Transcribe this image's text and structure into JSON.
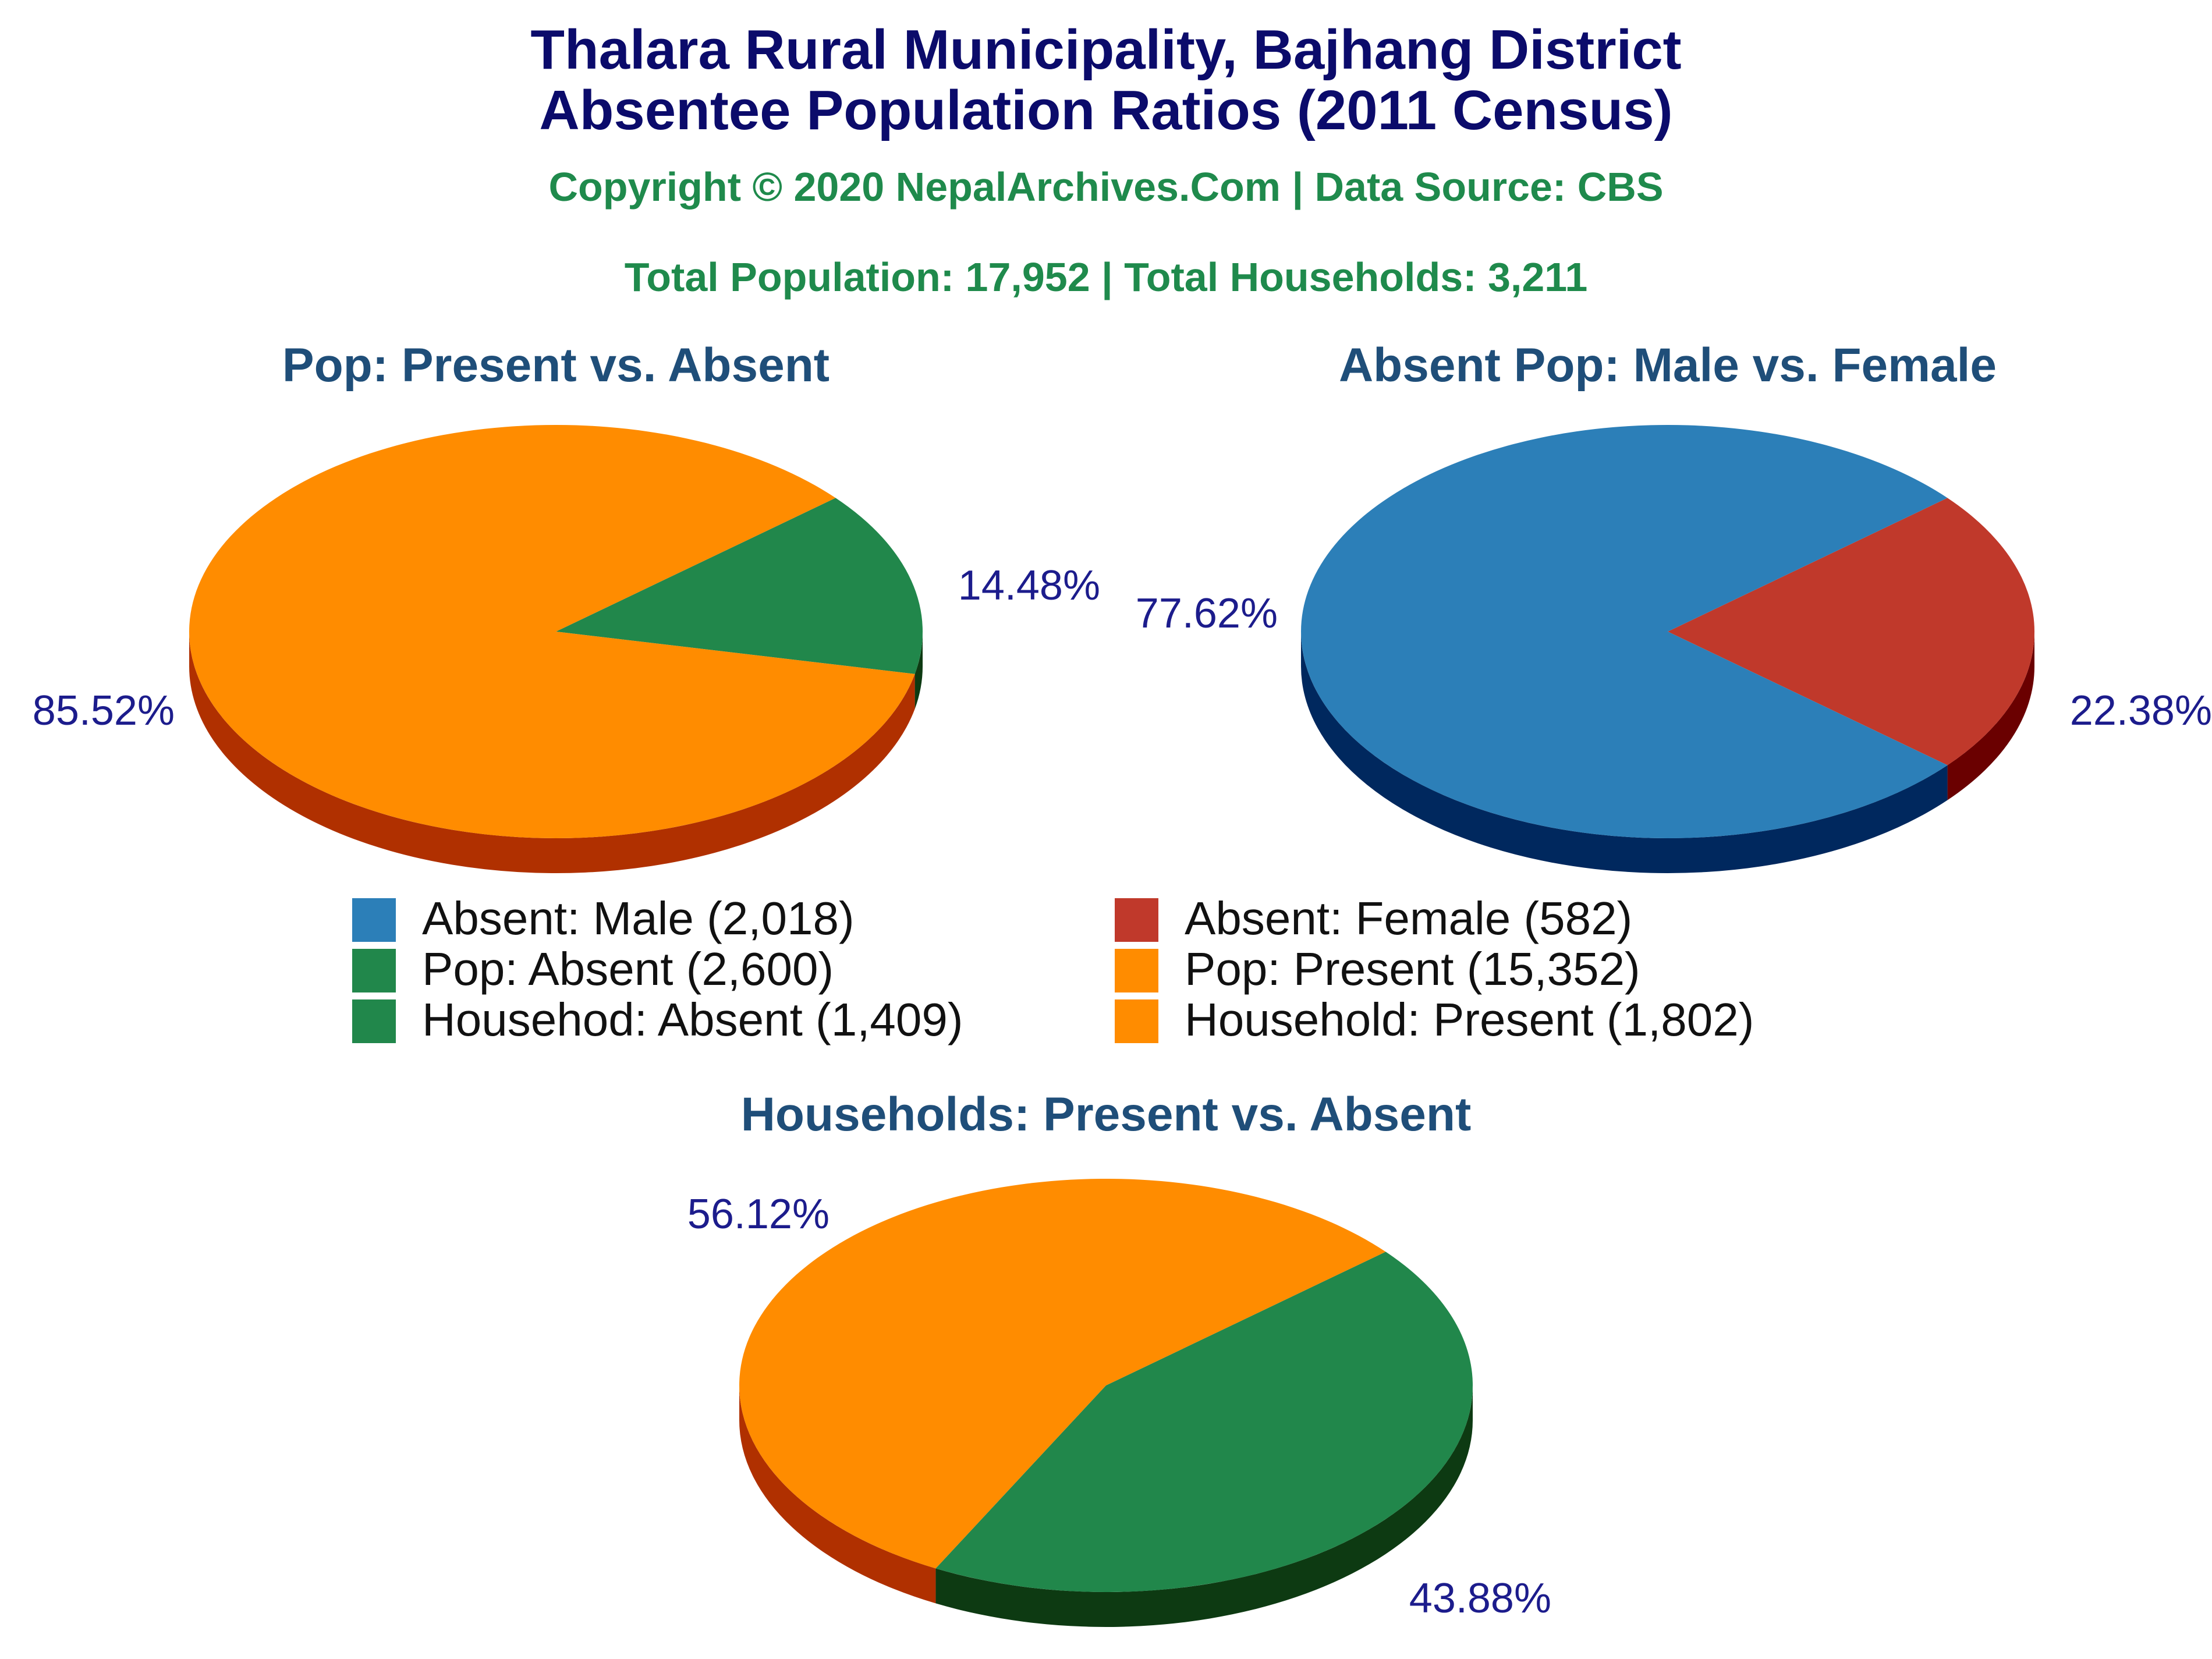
{
  "header": {
    "title_line1": "Thalara Rural Municipality, Bajhang District",
    "title_line2": "Absentee Population Ratios (2011 Census)",
    "copyright": "Copyright © 2020 NepalArchives.Com | Data Source: CBS",
    "totals": "Total Population: 17,952 | Total Households: 3,211"
  },
  "legend": {
    "items": [
      {
        "label": "Absent: Male (2,018)",
        "color": "#2c7fb8"
      },
      {
        "label": "Absent: Female (582)",
        "color": "#c0392b"
      },
      {
        "label": "Pop: Absent (2,600)",
        "color": "#21874b"
      },
      {
        "label": "Pop: Present (15,352)",
        "color": "#ff8c00"
      },
      {
        "label": "Househod: Absent (1,409)",
        "color": "#21874b"
      },
      {
        "label": "Household: Present (1,802)",
        "color": "#ff8c00"
      }
    ]
  },
  "chart_data": [
    {
      "type": "pie",
      "title": "Pop: Present vs. Absent",
      "slices": [
        {
          "label": "Pop: Absent",
          "value": 2600,
          "percent_label": "14.48%",
          "color": "#21874b",
          "side_color": "#0d3a12"
        },
        {
          "label": "Pop: Present",
          "value": 15352,
          "percent_label": "85.52%",
          "color": "#ff8c00",
          "side_color": "#b03000"
        }
      ]
    },
    {
      "type": "pie",
      "title": "Absent Pop: Male vs. Female",
      "slices": [
        {
          "label": "Absent: Female",
          "value": 582,
          "percent_label": "22.38%",
          "color": "#c0392b",
          "side_color": "#6a0000"
        },
        {
          "label": "Absent: Male",
          "value": 2018,
          "percent_label": "77.62%",
          "color": "#2c7fb8",
          "side_color": "#00285e"
        }
      ]
    },
    {
      "type": "pie",
      "title": "Households: Present vs. Absent",
      "slices": [
        {
          "label": "Househod: Absent",
          "value": 1409,
          "percent_label": "43.88%",
          "color": "#21874b",
          "side_color": "#0d3a12"
        },
        {
          "label": "Household: Present",
          "value": 1802,
          "percent_label": "56.12%",
          "color": "#ff8c00",
          "side_color": "#b03000"
        }
      ]
    }
  ]
}
